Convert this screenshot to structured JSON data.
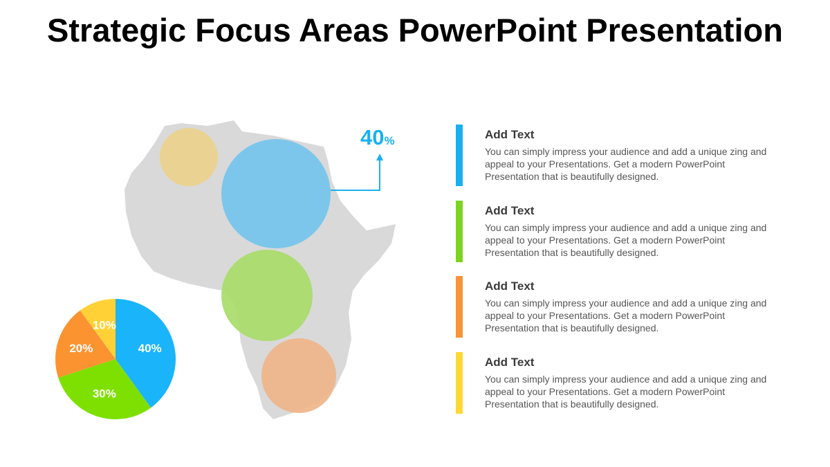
{
  "title": "Strategic Focus Areas PowerPoint Presentation",
  "callout": {
    "value": "40",
    "unit": "%",
    "color": "#1ab0f0"
  },
  "map": {
    "region": "Africa",
    "fill": "#d9d9d9",
    "bubbles": [
      {
        "color": "#ebd289"
      },
      {
        "color": "#78c5ec"
      },
      {
        "color": "#a9dc6a"
      },
      {
        "color": "#eeb487"
      }
    ]
  },
  "chart_data": {
    "type": "pie",
    "categories": [
      "40%",
      "30%",
      "20%",
      "10%"
    ],
    "values": [
      40,
      30,
      20,
      10
    ],
    "colors": [
      "#1ab4fb",
      "#7ee000",
      "#fb9331",
      "#ffd136"
    ],
    "start": "top",
    "direction": "clockwise"
  },
  "items": [
    {
      "title": "Add Text",
      "body": "You can simply impress your audience and add a unique zing and appeal to your Presentations. Get a modern PowerPoint Presentation that is beautifully designed.",
      "color": "#1ab0f0"
    },
    {
      "title": "Add Text",
      "body": "You can simply impress your audience and add a unique zing and appeal to your Presentations. Get a modern PowerPoint Presentation that is beautifully designed.",
      "color": "#7ed321"
    },
    {
      "title": "Add Text",
      "body": "You can simply impress your audience and add a unique zing and appeal to your Presentations. Get a modern PowerPoint Presentation that is beautifully designed.",
      "color": "#f7943a"
    },
    {
      "title": "Add Text",
      "body": "You can simply impress your audience and add a unique zing and appeal to your Presentations. Get a modern PowerPoint Presentation that is beautifully designed.",
      "color": "#fdd835"
    }
  ]
}
